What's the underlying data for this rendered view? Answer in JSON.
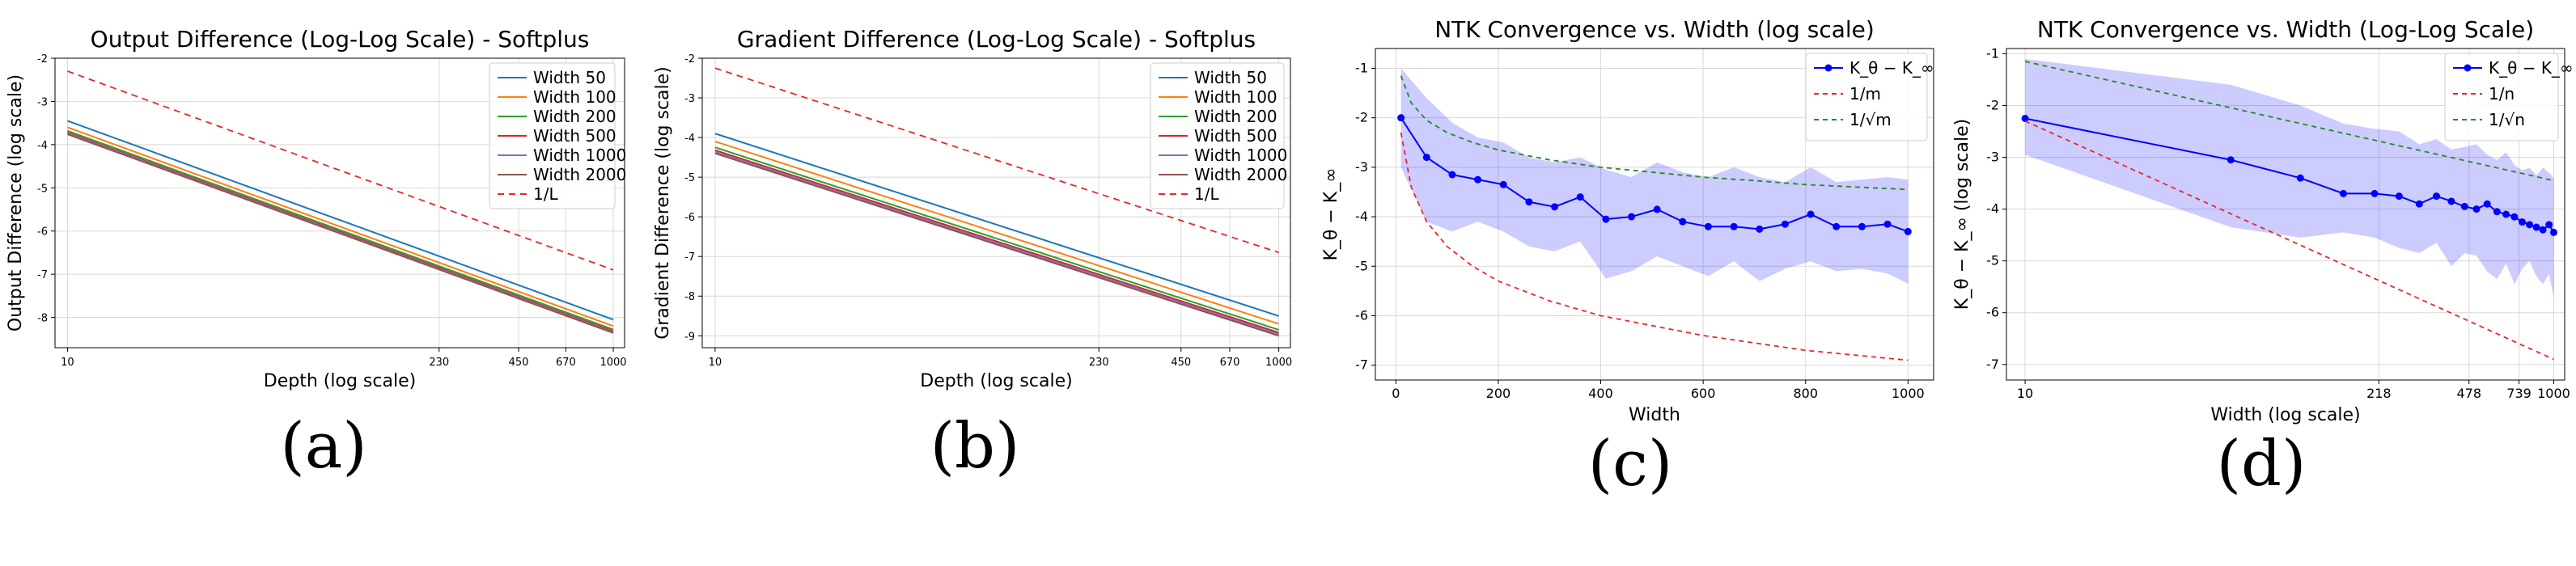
{
  "chart_data": [
    {
      "type": "line",
      "title": "Output Difference (Log-Log Scale) - Softplus",
      "xlabel": "Depth (log scale)",
      "ylabel": "Output Difference (log scale)",
      "xscale": "log",
      "xlim": [
        9,
        1100
      ],
      "ylim": [
        -8.7,
        -2
      ],
      "xticks": [
        10,
        230,
        450,
        670,
        1000
      ],
      "yticks": [
        -2,
        -3,
        -4,
        -5,
        -6,
        -7,
        -8
      ],
      "grid": true,
      "legend_position": "top-right",
      "caption": "(a)",
      "series": [
        {
          "name": "Width 50",
          "color": "#1f77b4",
          "dash": "",
          "x": [
            10,
            1000
          ],
          "y": [
            -3.45,
            -8.05
          ]
        },
        {
          "name": "Width 100",
          "color": "#ff7f0e",
          "dash": "",
          "x": [
            10,
            1000
          ],
          "y": [
            -3.6,
            -8.2
          ]
        },
        {
          "name": "Width 200",
          "color": "#2ca02c",
          "dash": "",
          "x": [
            10,
            1000
          ],
          "y": [
            -3.68,
            -8.28
          ]
        },
        {
          "name": "Width 500",
          "color": "#d62728",
          "dash": "",
          "x": [
            10,
            1000
          ],
          "y": [
            -3.72,
            -8.32
          ]
        },
        {
          "name": "Width 1000",
          "color": "#9467bd",
          "dash": "",
          "x": [
            10,
            1000
          ],
          "y": [
            -3.74,
            -8.34
          ]
        },
        {
          "name": "Width 2000",
          "color": "#8c564b",
          "dash": "",
          "x": [
            10,
            1000
          ],
          "y": [
            -3.76,
            -8.36
          ]
        },
        {
          "name": "1/L",
          "color": "#e8262a",
          "dash": "8,6",
          "x": [
            10,
            1000
          ],
          "y": [
            -2.3,
            -6.9
          ]
        }
      ]
    },
    {
      "type": "line",
      "title": "Gradient Difference (Log-Log Scale) - Softplus",
      "xlabel": "Depth (log scale)",
      "ylabel": "Gradient Difference (log scale)",
      "xscale": "log",
      "xlim": [
        9,
        1100
      ],
      "ylim": [
        -9.3,
        -2
      ],
      "xticks": [
        10,
        230,
        450,
        670,
        1000
      ],
      "yticks": [
        -2,
        -3,
        -4,
        -5,
        -6,
        -7,
        -8,
        -9
      ],
      "grid": true,
      "legend_position": "top-right",
      "caption": "(b)",
      "series": [
        {
          "name": "Width 50",
          "color": "#1f77b4",
          "dash": "",
          "x": [
            10,
            1000
          ],
          "y": [
            -3.9,
            -8.5
          ]
        },
        {
          "name": "Width 100",
          "color": "#ff7f0e",
          "dash": "",
          "x": [
            10,
            1000
          ],
          "y": [
            -4.1,
            -8.7
          ]
        },
        {
          "name": "Width 200",
          "color": "#2ca02c",
          "dash": "",
          "x": [
            10,
            1000
          ],
          "y": [
            -4.25,
            -8.85
          ]
        },
        {
          "name": "Width 500",
          "color": "#d62728",
          "dash": "",
          "x": [
            10,
            1000
          ],
          "y": [
            -4.32,
            -8.92
          ]
        },
        {
          "name": "Width 1000",
          "color": "#9467bd",
          "dash": "",
          "x": [
            10,
            1000
          ],
          "y": [
            -4.36,
            -8.96
          ]
        },
        {
          "name": "Width 2000",
          "color": "#8c564b",
          "dash": "",
          "x": [
            10,
            1000
          ],
          "y": [
            -4.4,
            -9.0
          ]
        },
        {
          "name": "1/L",
          "color": "#e8262a",
          "dash": "8,6",
          "x": [
            10,
            1000
          ],
          "y": [
            -2.25,
            -6.9
          ]
        }
      ]
    },
    {
      "type": "line",
      "title": "NTK Convergence vs. Width (log scale)",
      "xlabel": "Width",
      "ylabel": "K_θ − K_∞",
      "xscale": "linear",
      "xlim": [
        -40,
        1050
      ],
      "ylim": [
        -7.3,
        -0.6
      ],
      "xticks": [
        0,
        200,
        400,
        600,
        800,
        1000
      ],
      "yticks": [
        -1,
        -2,
        -3,
        -4,
        -5,
        -6,
        -7
      ],
      "grid": true,
      "legend_position": "top-right",
      "caption": "(c)",
      "band": {
        "color": "#0000ff",
        "x": [
          10,
          60,
          110,
          160,
          210,
          260,
          310,
          360,
          410,
          460,
          510,
          560,
          610,
          660,
          710,
          760,
          810,
          860,
          910,
          960,
          1000
        ],
        "upper": [
          -1.0,
          -1.6,
          -2.1,
          -2.4,
          -2.5,
          -2.8,
          -2.9,
          -2.8,
          -3.05,
          -3.2,
          -2.9,
          -3.1,
          -3.2,
          -3.0,
          -3.2,
          -3.3,
          -3.0,
          -3.3,
          -3.25,
          -3.2,
          -3.25
        ],
        "lower": [
          -3.0,
          -4.1,
          -4.3,
          -4.1,
          -4.3,
          -4.6,
          -4.7,
          -4.5,
          -5.25,
          -5.1,
          -4.8,
          -5.0,
          -5.2,
          -4.9,
          -5.3,
          -5.05,
          -4.9,
          -5.1,
          -5.05,
          -5.15,
          -5.35
        ]
      },
      "series": [
        {
          "name": "K_θ − K_∞",
          "color": "#0000ff",
          "dash": "",
          "markers": true,
          "x": [
            10,
            60,
            110,
            160,
            210,
            260,
            310,
            360,
            410,
            460,
            510,
            560,
            610,
            660,
            710,
            760,
            810,
            860,
            910,
            960,
            1000
          ],
          "y": [
            -2.0,
            -2.8,
            -3.15,
            -3.25,
            -3.35,
            -3.7,
            -3.8,
            -3.6,
            -4.05,
            -4.0,
            -3.85,
            -4.1,
            -4.2,
            -4.2,
            -4.25,
            -4.15,
            -3.95,
            -4.2,
            -4.2,
            -4.15,
            -4.3
          ]
        },
        {
          "name": "1/m",
          "color": "#e8262a",
          "dash": "6,5",
          "markers": false,
          "x": [
            10,
            30,
            60,
            100,
            150,
            200,
            300,
            400,
            500,
            600,
            700,
            800,
            900,
            1000
          ],
          "y": [
            -2.3,
            -3.4,
            -4.1,
            -4.6,
            -5.0,
            -5.3,
            -5.7,
            -6.0,
            -6.2,
            -6.4,
            -6.55,
            -6.7,
            -6.8,
            -6.9
          ]
        },
        {
          "name": "1/√m",
          "color": "#228b22",
          "dash": "6,5",
          "markers": false,
          "x": [
            10,
            30,
            60,
            100,
            150,
            200,
            300,
            400,
            500,
            600,
            700,
            800,
            900,
            1000
          ],
          "y": [
            -1.15,
            -1.7,
            -2.05,
            -2.3,
            -2.5,
            -2.65,
            -2.85,
            -3.0,
            -3.1,
            -3.2,
            -3.27,
            -3.35,
            -3.4,
            -3.45
          ]
        }
      ],
      "legend_labels": [
        "K_θ − K_∞",
        "1/m",
        "1/√m"
      ]
    },
    {
      "type": "line",
      "title": "NTK Convergence vs. Width (Log-Log Scale)",
      "xlabel": "Width (log scale)",
      "ylabel": "K_θ − K_∞ (log scale)",
      "xscale": "log",
      "xlim": [
        8.5,
        1100
      ],
      "ylim": [
        -7.3,
        -0.9
      ],
      "xticks": [
        10,
        218,
        478,
        739,
        1000
      ],
      "yticks": [
        -1,
        -2,
        -3,
        -4,
        -5,
        -6,
        -7
      ],
      "grid": true,
      "legend_position": "top-right",
      "caption": "(d)",
      "band": {
        "color": "#0000ff",
        "x": [
          10,
          60,
          110,
          160,
          210,
          260,
          310,
          360,
          410,
          460,
          510,
          560,
          610,
          660,
          710,
          760,
          810,
          860,
          910,
          960,
          1000
        ],
        "upper": [
          -1.1,
          -1.6,
          -2.0,
          -2.35,
          -2.45,
          -2.5,
          -2.75,
          -2.65,
          -2.85,
          -2.8,
          -2.75,
          -2.95,
          -3.05,
          -2.9,
          -3.15,
          -3.25,
          -3.2,
          -3.35,
          -3.2,
          -3.3,
          -3.4
        ],
        "lower": [
          -2.95,
          -4.35,
          -4.55,
          -4.45,
          -4.55,
          -4.75,
          -4.85,
          -4.65,
          -5.1,
          -4.85,
          -4.9,
          -5.2,
          -5.35,
          -5.05,
          -5.45,
          -5.15,
          -5.0,
          -5.3,
          -5.45,
          -5.25,
          -5.7
        ]
      },
      "series": [
        {
          "name": "K_θ − K_∞",
          "color": "#0000ff",
          "dash": "",
          "markers": true,
          "x": [
            10,
            60,
            110,
            160,
            210,
            260,
            310,
            360,
            410,
            460,
            510,
            560,
            610,
            660,
            710,
            760,
            810,
            860,
            910,
            960,
            1000
          ],
          "y": [
            -2.25,
            -3.05,
            -3.4,
            -3.7,
            -3.7,
            -3.75,
            -3.9,
            -3.75,
            -3.85,
            -3.95,
            -4.0,
            -3.9,
            -4.05,
            -4.1,
            -4.15,
            -4.25,
            -4.3,
            -4.35,
            -4.4,
            -4.3,
            -4.45
          ]
        },
        {
          "name": "1/n",
          "color": "#e8262a",
          "dash": "6,5",
          "markers": false,
          "x": [
            10,
            1000
          ],
          "y": [
            -2.3,
            -6.9
          ]
        },
        {
          "name": "1/√n",
          "color": "#228b22",
          "dash": "6,5",
          "markers": false,
          "x": [
            10,
            1000
          ],
          "y": [
            -1.15,
            -3.45
          ]
        }
      ],
      "legend_labels": [
        "K_θ − K_∞",
        "1/n",
        "1/√n"
      ]
    }
  ]
}
